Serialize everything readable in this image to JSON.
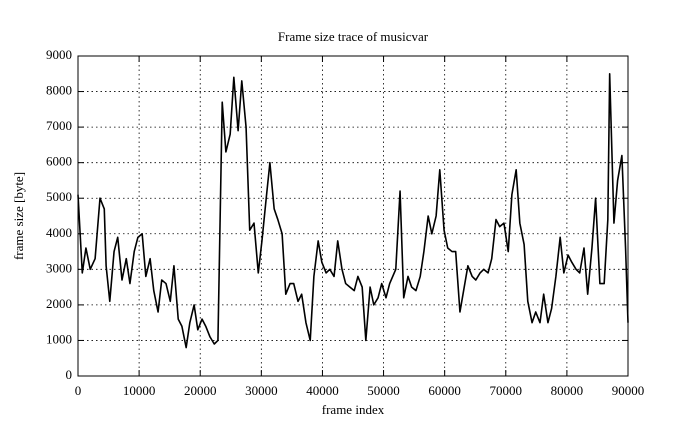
{
  "chart_data": {
    "type": "line",
    "title": "Frame size trace of musicvar",
    "x_label": "frame index",
    "y_label": "frame size [byte]",
    "xlim": [
      0,
      90000
    ],
    "ylim": [
      0,
      9000
    ],
    "xticks": [
      0,
      10000,
      20000,
      30000,
      40000,
      50000,
      60000,
      70000,
      80000,
      90000
    ],
    "yticks": [
      0,
      1000,
      2000,
      3000,
      4000,
      5000,
      6000,
      7000,
      8000,
      9000
    ],
    "grid": true,
    "color": "#000000",
    "x": [
      0,
      700,
      1300,
      2000,
      2800,
      3600,
      4300,
      4600,
      5200,
      5900,
      6500,
      7200,
      7900,
      8500,
      9200,
      9800,
      10500,
      11100,
      11800,
      12400,
      13100,
      13700,
      14400,
      15100,
      15700,
      16400,
      17000,
      17700,
      18300,
      19000,
      19600,
      20300,
      20900,
      21600,
      22300,
      22900,
      23600,
      24200,
      24900,
      25500,
      26200,
      26800,
      27500,
      28100,
      28800,
      29500,
      30100,
      30800,
      31400,
      32100,
      32700,
      33400,
      34000,
      34700,
      35300,
      36000,
      36600,
      37300,
      38000,
      38600,
      39300,
      39900,
      40600,
      41200,
      41900,
      42500,
      43200,
      43800,
      44500,
      45200,
      45800,
      46500,
      47100,
      47800,
      48400,
      49100,
      49700,
      50400,
      51000,
      52000,
      52700,
      53300,
      54000,
      54600,
      55300,
      56000,
      56600,
      57300,
      57900,
      58600,
      59200,
      59900,
      60500,
      61200,
      61800,
      62500,
      63200,
      63800,
      64500,
      65100,
      65800,
      66400,
      67100,
      67700,
      68400,
      69000,
      69700,
      70400,
      71000,
      71700,
      72300,
      73000,
      73600,
      74300,
      74900,
      75600,
      76200,
      76900,
      77500,
      78200,
      78900,
      79500,
      80200,
      80800,
      81500,
      82100,
      82800,
      83400,
      84100,
      84700,
      85400,
      86100,
      86700,
      87000,
      87400,
      87700,
      88300,
      89000,
      89600,
      90000
    ],
    "values": [
      5100,
      2900,
      3600,
      3000,
      3300,
      5000,
      4700,
      3100,
      2100,
      3500,
      3900,
      2700,
      3300,
      2600,
      3500,
      3900,
      4000,
      2800,
      3300,
      2400,
      1800,
      2700,
      2600,
      2100,
      3100,
      1600,
      1400,
      800,
      1500,
      2000,
      1300,
      1600,
      1400,
      1100,
      900,
      1000,
      7700,
      6300,
      6800,
      8400,
      6900,
      8300,
      7000,
      4100,
      4300,
      2900,
      3800,
      5000,
      6000,
      4700,
      4400,
      4000,
      2300,
      2600,
      2600,
      2100,
      2300,
      1500,
      1000,
      2800,
      3800,
      3200,
      2900,
      3000,
      2800,
      3800,
      3000,
      2600,
      2500,
      2400,
      2800,
      2500,
      1000,
      2500,
      2000,
      2200,
      2600,
      2200,
      2600,
      3000,
      5200,
      2200,
      2800,
      2500,
      2400,
      2800,
      3500,
      4500,
      4000,
      4500,
      5800,
      4100,
      3600,
      3500,
      3500,
      1800,
      2500,
      3100,
      2800,
      2700,
      2900,
      3000,
      2900,
      3300,
      4400,
      4200,
      4300,
      3500,
      5100,
      5800,
      4300,
      3700,
      2100,
      1500,
      1800,
      1500,
      2300,
      1500,
      1900,
      2800,
      3900,
      2900,
      3400,
      3200,
      3000,
      2900,
      3600,
      2300,
      3600,
      5000,
      2600,
      2600,
      4400,
      8500,
      6100,
      4300,
      5500,
      6200,
      3600,
      1500
    ]
  }
}
